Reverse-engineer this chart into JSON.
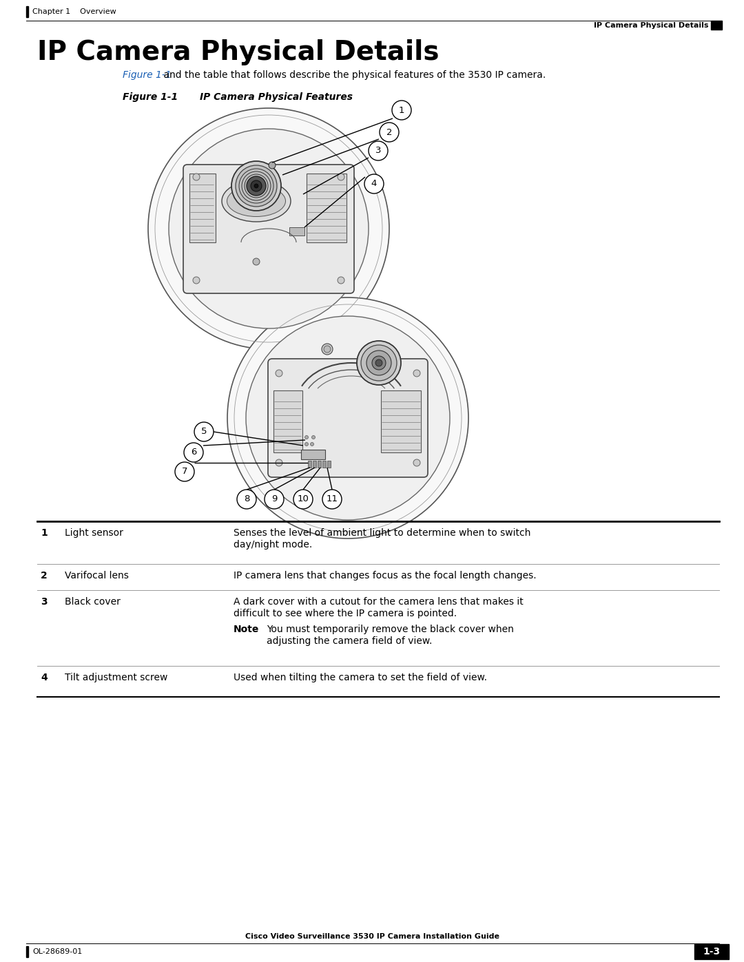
{
  "title": "IP Camera Physical Details",
  "header_left": "Chapter 1    Overview",
  "header_right": "IP Camera Physical Details",
  "footer_left": "OL-28689-01",
  "footer_center": "Cisco Video Surveillance 3530 IP Camera Installation Guide",
  "footer_right": "1-3",
  "figure_label": "Figure 1-1",
  "figure_caption": "IP Camera Physical Features",
  "intro_pre": "",
  "intro_link": "Figure 1-1",
  "intro_post": " and the table that follows describe the physical features of the 3530 IP camera.",
  "bg_color": "#ffffff",
  "link_color": "#1a5fb4",
  "table_rows": [
    {
      "num": "1",
      "feature": "Light sensor",
      "desc_lines": [
        "Senses the level of ambient light to determine when to switch",
        "day/night mode."
      ],
      "note": null
    },
    {
      "num": "2",
      "feature": "Varifocal lens",
      "desc_lines": [
        "IP camera lens that changes focus as the focal length changes."
      ],
      "note": null
    },
    {
      "num": "3",
      "feature": "Black cover",
      "desc_lines": [
        "A dark cover with a cutout for the camera lens that makes it",
        "difficult to see where the IP camera is pointed."
      ],
      "note": [
        "You must temporarily remove the black cover when",
        "adjusting the camera field of view."
      ]
    },
    {
      "num": "4",
      "feature": "Tilt adjustment screw",
      "desc_lines": [
        "Used when tilting the camera to set the field of view."
      ],
      "note": null
    }
  ]
}
